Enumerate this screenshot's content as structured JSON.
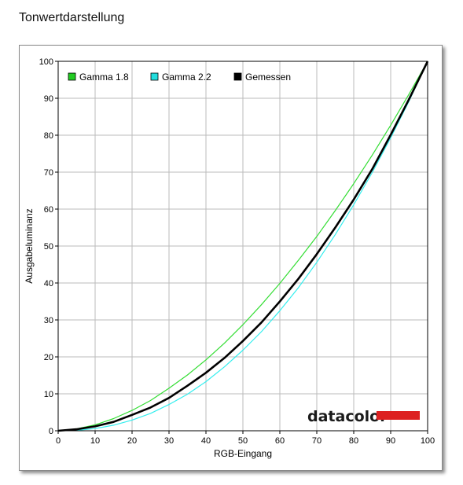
{
  "page": {
    "title": "Tonwertdarstellung"
  },
  "chart_data": {
    "type": "line",
    "xlabel": "RGB-Eingang",
    "ylabel": "Ausgabeluminanz",
    "xlim": [
      0,
      100
    ],
    "ylim": [
      0,
      100
    ],
    "xticks": [
      0,
      10,
      20,
      30,
      40,
      50,
      60,
      70,
      80,
      90,
      100
    ],
    "yticks": [
      0,
      10,
      20,
      30,
      40,
      50,
      60,
      70,
      80,
      90,
      100
    ],
    "grid": true,
    "legend": "top-left",
    "series": [
      {
        "name": "Gamma 1.8",
        "color": "#33dd33",
        "legend_color": "#22cc22",
        "x": [
          0,
          5,
          10,
          15,
          20,
          25,
          30,
          35,
          40,
          45,
          50,
          55,
          60,
          65,
          70,
          75,
          80,
          85,
          90,
          95,
          100
        ],
        "y": [
          0,
          0.5,
          1.6,
          3.3,
          5.5,
          8.2,
          11.5,
          15.1,
          19.2,
          23.7,
          28.7,
          34.1,
          39.9,
          46.1,
          52.6,
          59.6,
          66.9,
          74.6,
          82.7,
          91.2,
          100
        ]
      },
      {
        "name": "Gamma 2.2",
        "color": "#33eeee",
        "legend_color": "#22dddd",
        "x": [
          0,
          5,
          10,
          15,
          20,
          25,
          30,
          35,
          40,
          45,
          50,
          55,
          60,
          65,
          70,
          75,
          80,
          85,
          90,
          95,
          100
        ],
        "y": [
          0,
          0.1,
          0.6,
          1.5,
          2.9,
          4.7,
          7.1,
          9.9,
          13.3,
          17.3,
          21.8,
          26.8,
          32.5,
          38.7,
          45.6,
          53.1,
          61.2,
          69.9,
          79.3,
          89.3,
          100
        ]
      },
      {
        "name": "Gemessen",
        "color": "#000000",
        "legend_color": "#000000",
        "x": [
          0,
          5,
          10,
          15,
          20,
          25,
          30,
          35,
          40,
          45,
          50,
          55,
          60,
          65,
          70,
          75,
          80,
          85,
          90,
          95,
          100
        ],
        "y": [
          0,
          0.4,
          1.2,
          2.4,
          4.3,
          6.3,
          8.9,
          12.2,
          15.7,
          19.7,
          24.3,
          29.3,
          35.0,
          41.1,
          47.8,
          55.0,
          62.6,
          70.8,
          80.1,
          89.8,
          100
        ]
      }
    ]
  },
  "logo": {
    "text": "datacolor",
    "bar_color": "#dd2020"
  }
}
